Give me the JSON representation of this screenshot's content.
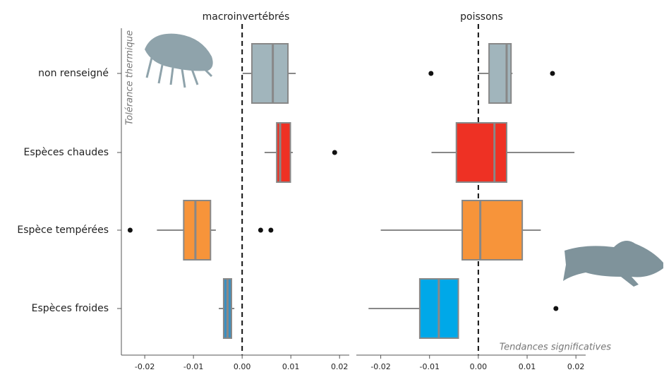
{
  "chart_data": [
    {
      "type": "box",
      "title": "macroinvertébrés",
      "ylabel": "Tolérance thermique",
      "categories": [
        "non renseigné",
        "Espèces chaudes",
        "Espèce tempérées",
        "Espèces froides"
      ],
      "boxes": [
        {
          "min": 0.0001,
          "q1": 0.002,
          "median": 0.0063,
          "q3": 0.0094,
          "max": 0.011,
          "outliers": [],
          "color": "#a1b5bc"
        },
        {
          "min": 0.0046,
          "q1": 0.0071,
          "median": 0.0078,
          "q3": 0.0099,
          "max": 0.0104,
          "outliers": [
            0.019
          ],
          "color": "#ee3124"
        },
        {
          "min": -0.0175,
          "q1": -0.012,
          "median": -0.0096,
          "q3": -0.0065,
          "max": -0.0054,
          "outliers": [
            -0.023,
            0.0038,
            0.0059
          ],
          "color": "#f7943a"
        },
        {
          "min": -0.0048,
          "q1": -0.0038,
          "median": -0.003,
          "q3": -0.0022,
          "max": -0.0016,
          "outliers": [],
          "color": "#3b8fc0"
        }
      ],
      "xlim": [
        -0.0248,
        0.022
      ],
      "xticks": [
        -0.02,
        -0.01,
        {
          "value": 0,
          "label": "0.00"
        },
        0.01,
        0.02
      ],
      "reference_line": 0
    },
    {
      "type": "box",
      "title": "poissons",
      "annotation": "Tendances significatives",
      "boxes": [
        {
          "min": 0.0,
          "q1": 0.0022,
          "median": 0.0058,
          "q3": 0.0067,
          "max": 0.007,
          "outliers": [
            -0.0097,
            0.0152
          ],
          "color": "#a1b5bc"
        },
        {
          "min": -0.0096,
          "q1": -0.0045,
          "median": 0.0033,
          "q3": 0.0058,
          "max": 0.0197,
          "outliers": [],
          "color": "#ee3124"
        },
        {
          "min": -0.02,
          "q1": -0.0033,
          "median": 0.0004,
          "q3": 0.009,
          "max": 0.0128,
          "outliers": [],
          "color": "#f7943a"
        },
        {
          "min": -0.0225,
          "q1": -0.012,
          "median": -0.0081,
          "q3": -0.0041,
          "max": -0.0041,
          "outliers": [
            0.0159
          ],
          "color": "#00a8e8"
        }
      ],
      "xlim": [
        -0.025,
        0.022
      ],
      "xticks": [
        -0.02,
        -0.01,
        {
          "value": 0,
          "label": "0.00"
        },
        0.01,
        0.02
      ],
      "reference_line": 0
    }
  ]
}
